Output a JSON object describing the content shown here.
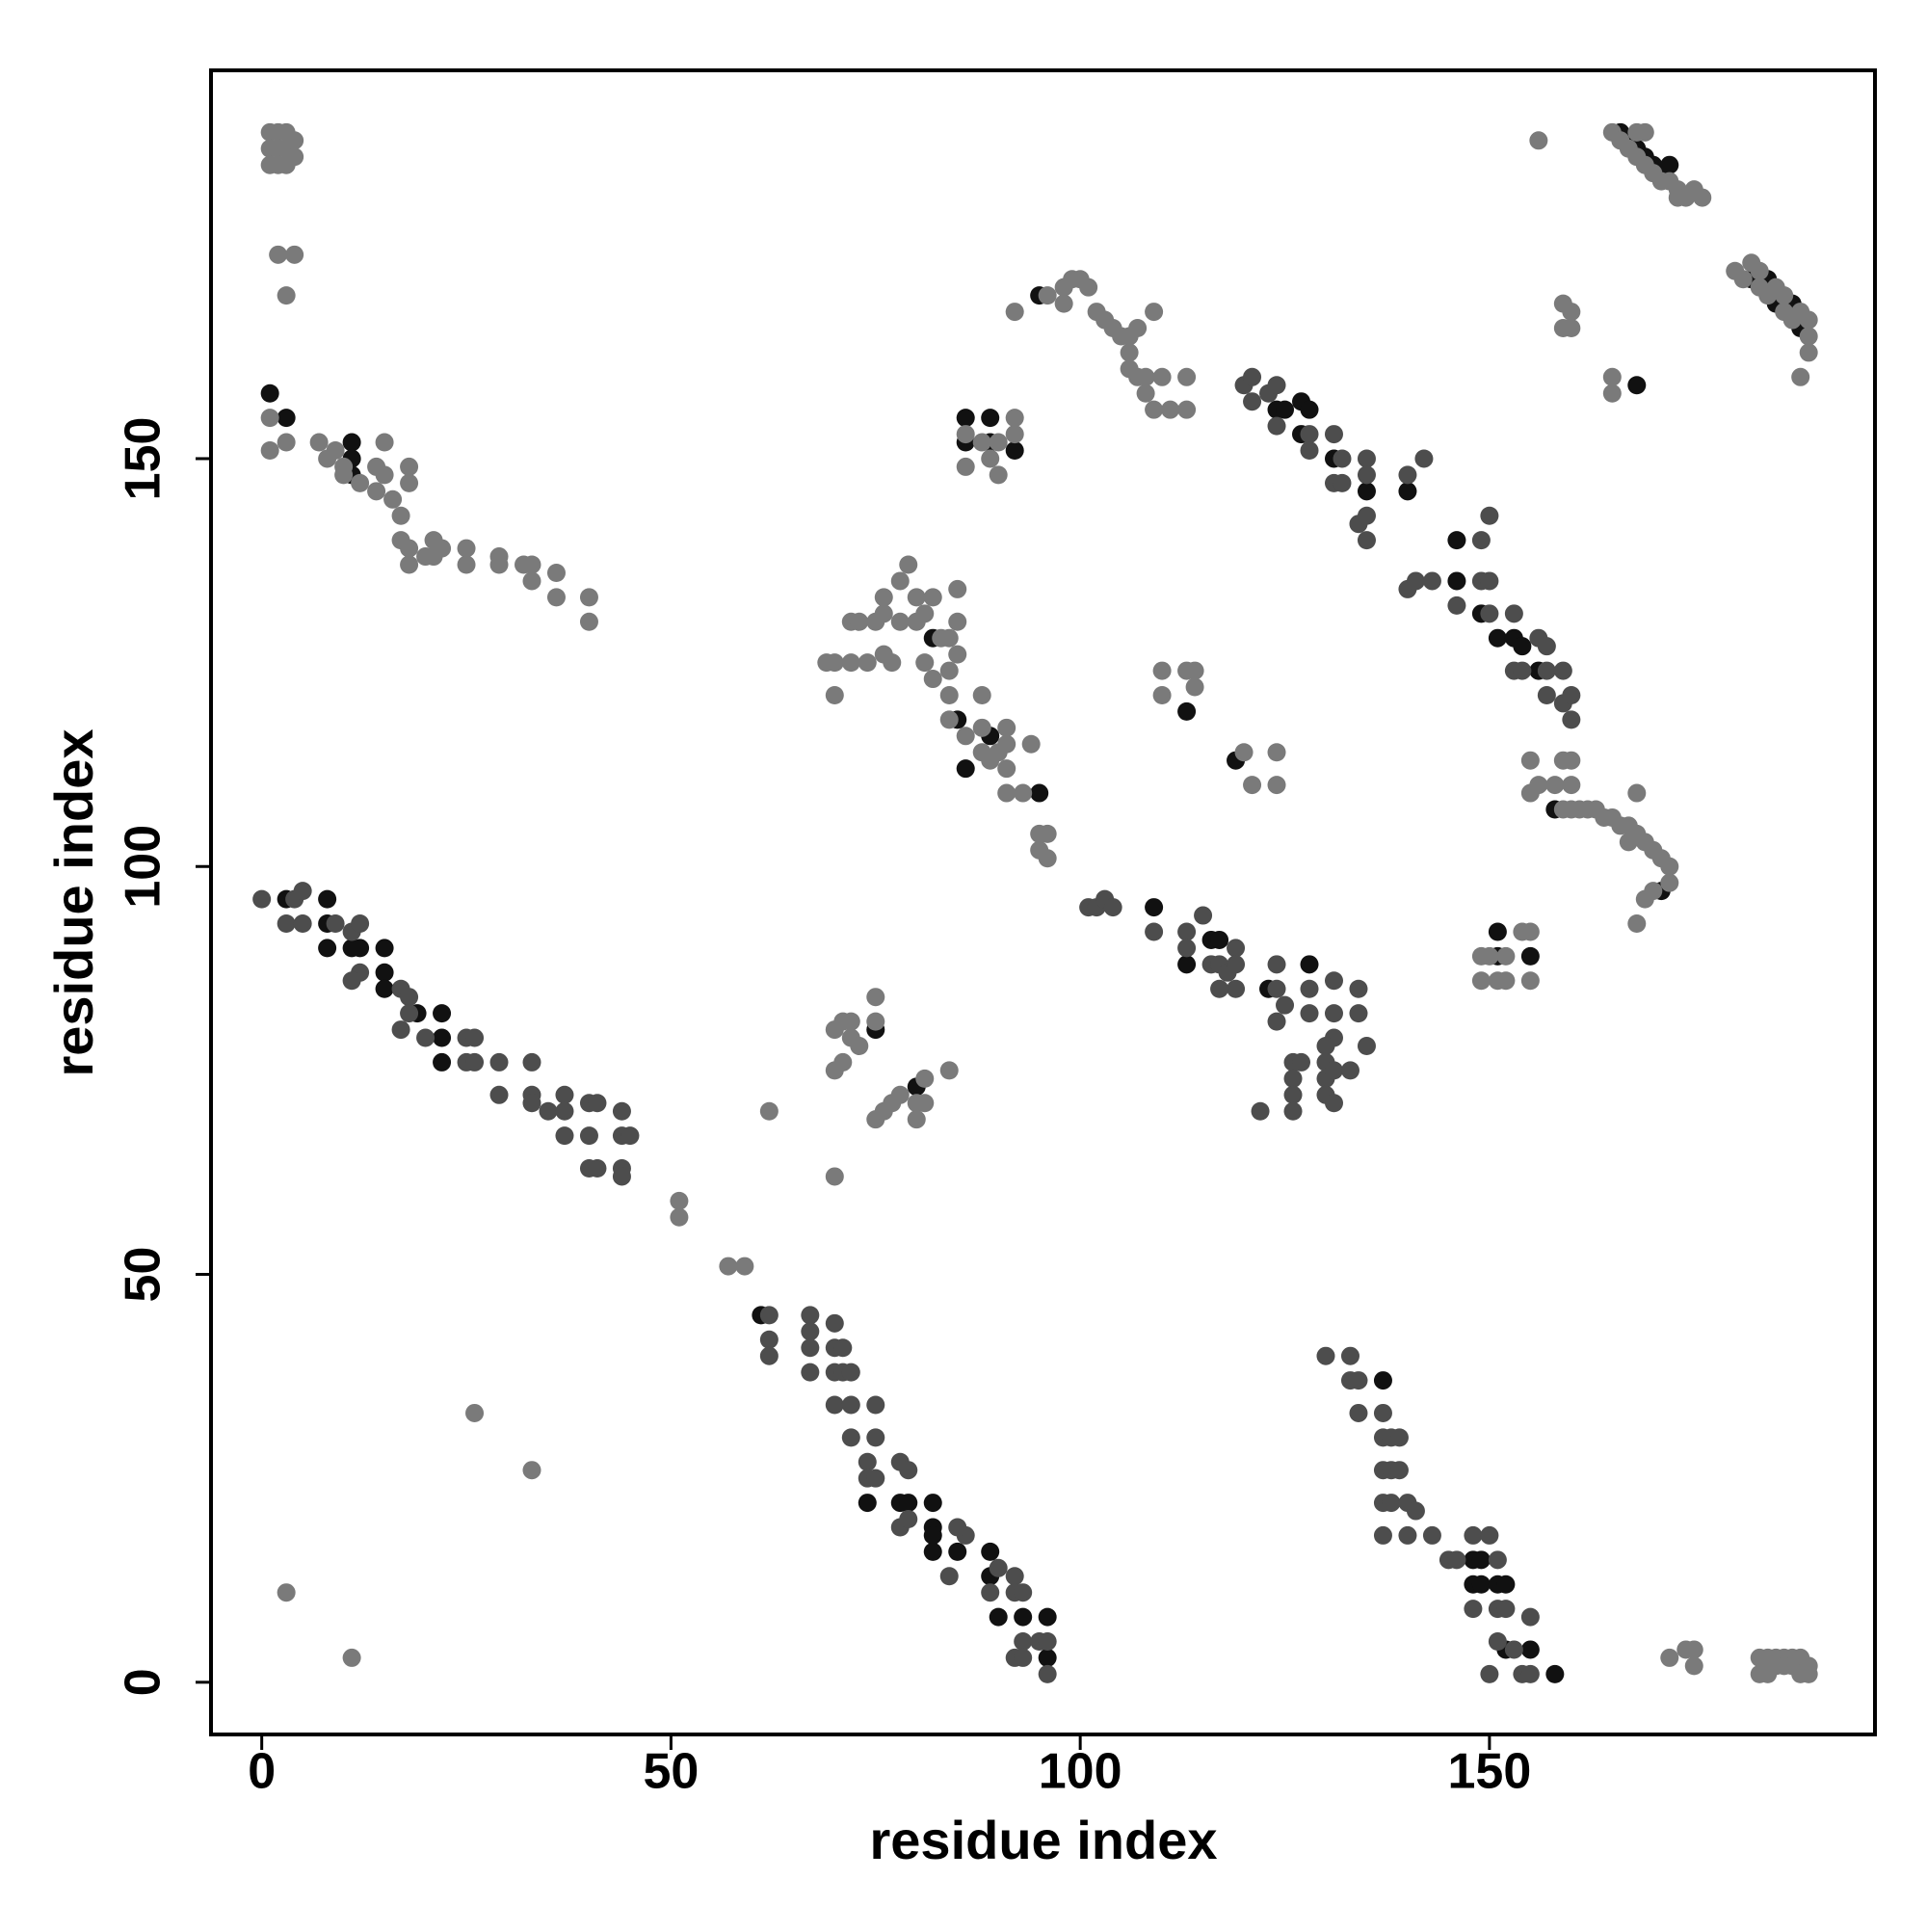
{
  "chart_data": {
    "type": "scatter",
    "xlabel": "residue index",
    "ylabel": "residue index",
    "xlim": [
      -6.2,
      197.1
    ],
    "ylim": [
      -6.4,
      197.6
    ],
    "xticks": [
      0,
      50,
      100,
      150
    ],
    "yticks": [
      0,
      50,
      100,
      150
    ],
    "series": [
      {
        "color": "#111111",
        "x": [
          1,
          3,
          11,
          11,
          11,
          3,
          8,
          8,
          8,
          12,
          11,
          15,
          15,
          15,
          19,
          22,
          22,
          22,
          61,
          74,
          78,
          79,
          82,
          82,
          82,
          82,
          85,
          89,
          89,
          90,
          93,
          96,
          96,
          137,
          148,
          149,
          148,
          149,
          151,
          152,
          152,
          155,
          158,
          75,
          80,
          82,
          85,
          86,
          89,
          95,
          109,
          113,
          116,
          117,
          123,
          128,
          95,
          86,
          86,
          89,
          89,
          92,
          124,
          125,
          127,
          128,
          127,
          131,
          135,
          140,
          146,
          146,
          149,
          151,
          153,
          154,
          156,
          113,
          119,
          151,
          151,
          155,
          158,
          171,
          166,
          167,
          168,
          169,
          170,
          171,
          172,
          168,
          182,
          184,
          185,
          187,
          188
        ],
        "values": [
          158,
          155,
          152,
          150,
          148,
          96,
          96,
          93,
          90,
          90,
          90,
          90,
          87,
          85,
          82,
          82,
          79,
          76,
          45,
          22,
          22,
          22,
          22,
          19,
          18,
          16,
          16,
          16,
          13,
          8,
          8,
          8,
          3,
          37,
          15,
          15,
          12,
          12,
          12,
          12,
          4,
          4,
          1,
          80,
          73,
          128,
          118,
          112,
          116,
          109,
          95,
          88,
          91,
          91,
          85,
          88,
          170,
          155,
          152,
          155,
          152,
          151,
          156,
          156,
          157,
          156,
          153,
          150,
          146,
          146,
          140,
          135,
          131,
          128,
          128,
          127,
          124,
          119,
          113,
          92,
          89,
          89,
          107,
          97,
          190,
          189,
          188,
          187,
          186,
          185,
          186,
          159,
          172,
          172,
          169,
          169,
          166
        ]
      },
      {
        "color": "#4d4d4d",
        "x": [
          0,
          4,
          5,
          3,
          5,
          9,
          11,
          12,
          12,
          11,
          17,
          18,
          18,
          17,
          20,
          25,
          25,
          26,
          26,
          29,
          29,
          33,
          33,
          33,
          35,
          37,
          37,
          37,
          40,
          40,
          41,
          40,
          41,
          44,
          44,
          45,
          44,
          44,
          62,
          62,
          62,
          67,
          67,
          67,
          67,
          70,
          70,
          71,
          70,
          71,
          72,
          70,
          72,
          75,
          72,
          75,
          74,
          74,
          75,
          78,
          79,
          78,
          79,
          86,
          85,
          84,
          90,
          89,
          92,
          92,
          93,
          93,
          95,
          96,
          92,
          93,
          96,
          130,
          133,
          133,
          134,
          134,
          137,
          137,
          138,
          139,
          137,
          138,
          139,
          137,
          138,
          140,
          141,
          137,
          140,
          143,
          145,
          146,
          148,
          150,
          151,
          148,
          151,
          152,
          155,
          151,
          153,
          150,
          154,
          155,
          101,
          102,
          103,
          104,
          109,
          113,
          113,
          115,
          116,
          117,
          119,
          118,
          119,
          117,
          119,
          124,
          124,
          124,
          125,
          126,
          126,
          126,
          126,
          127,
          128,
          128,
          131,
          131,
          130,
          130,
          130,
          130,
          131,
          131,
          133,
          134,
          134,
          135,
          122,
          131,
          120,
          121,
          121,
          123,
          124,
          124,
          128,
          128,
          131,
          132,
          131,
          132,
          135,
          135,
          134,
          135,
          135,
          140,
          142,
          140,
          141,
          143,
          146,
          149,
          149,
          150,
          150,
          150,
          153,
          153,
          154,
          156,
          157,
          157,
          157,
          159,
          159,
          160,
          160
        ],
        "values": [
          96,
          96,
          97,
          93,
          93,
          93,
          92,
          93,
          87,
          86,
          85,
          84,
          82,
          80,
          79,
          79,
          76,
          76,
          79,
          76,
          72,
          76,
          72,
          71,
          70,
          72,
          70,
          67,
          71,
          67,
          71,
          63,
          63,
          70,
          67,
          67,
          63,
          62,
          45,
          42,
          40,
          45,
          43,
          41,
          38,
          44,
          41,
          41,
          38,
          38,
          38,
          34,
          34,
          34,
          30,
          30,
          27,
          25,
          25,
          27,
          26,
          19,
          20,
          18,
          19,
          13,
          14,
          11,
          13,
          11,
          11,
          5,
          5,
          5,
          3,
          3,
          1,
          40,
          40,
          37,
          37,
          33,
          33,
          30,
          30,
          30,
          26,
          26,
          26,
          22,
          22,
          22,
          21,
          18,
          18,
          18,
          15,
          15,
          18,
          18,
          15,
          9,
          9,
          9,
          8,
          5,
          4,
          1,
          1,
          1,
          95,
          95,
          96,
          95,
          92,
          92,
          90,
          94,
          88,
          88,
          90,
          87,
          85,
          85,
          88,
          88,
          85,
          81,
          83,
          76,
          74,
          72,
          70,
          76,
          85,
          82,
          82,
          79,
          78,
          76,
          74,
          72,
          71,
          75,
          75,
          82,
          85,
          78,
          70,
          86,
          159,
          160,
          157,
          158,
          159,
          154,
          153,
          151,
          153,
          150,
          147,
          147,
          150,
          148,
          142,
          143,
          140,
          148,
          150,
          134,
          135,
          135,
          132,
          140,
          135,
          135,
          131,
          143,
          131,
          124,
          124,
          128,
          127,
          124,
          121,
          124,
          120,
          121,
          118
        ]
      },
      {
        "color": "#7a7a7a",
        "x": [
          1,
          2,
          3,
          1,
          2,
          3,
          4,
          1,
          2,
          3,
          4,
          2,
          4,
          3,
          1,
          1,
          3,
          7,
          8,
          9,
          10,
          10,
          12,
          14,
          14,
          15,
          15,
          16,
          18,
          18,
          17,
          17,
          18,
          18,
          21,
          21,
          22,
          25,
          25,
          29,
          29,
          32,
          33,
          33,
          36,
          36,
          40,
          40,
          20,
          51,
          51,
          57,
          59,
          62,
          70,
          26,
          33,
          3,
          11,
          172,
          174,
          175,
          175,
          183,
          184,
          185,
          186,
          187,
          188,
          183,
          184,
          185,
          186,
          187,
          188,
          189,
          189,
          70,
          71,
          72,
          73,
          70,
          71,
          72,
          75,
          75,
          75,
          76,
          77,
          78,
          80,
          80,
          81,
          81,
          84,
          69,
          70,
          70,
          72,
          72,
          73,
          74,
          75,
          76,
          76,
          76,
          77,
          78,
          78,
          79,
          80,
          80,
          81,
          82,
          81,
          82,
          83,
          84,
          85,
          85,
          85,
          84,
          84,
          84,
          86,
          88,
          88,
          88,
          89,
          90,
          91,
          91,
          91,
          94,
          91,
          93,
          95,
          96,
          95,
          96,
          92,
          96,
          98,
          98,
          99,
          100,
          101,
          102,
          103,
          104,
          105,
          106,
          106,
          107,
          106,
          107,
          109,
          108,
          108,
          110,
          109,
          111,
          113,
          113,
          86,
          86,
          89,
          88,
          90,
          90,
          92,
          92,
          110,
          110,
          113,
          114,
          114,
          120,
          121,
          124,
          124,
          149,
          150,
          151,
          152,
          152,
          149,
          154,
          155,
          155,
          155,
          155,
          156,
          158,
          159,
          159,
          160,
          160,
          160,
          161,
          162,
          163,
          164,
          165,
          166,
          167,
          167,
          168,
          168,
          169,
          170,
          171,
          172,
          172,
          170,
          169,
          168,
          165,
          166,
          167,
          168,
          168,
          169,
          169,
          170,
          171,
          172,
          173,
          173,
          174,
          175,
          176,
          156,
          159,
          160,
          159,
          160,
          165,
          165,
          180,
          181,
          182,
          183,
          183,
          184,
          185,
          186,
          186,
          187,
          188,
          189,
          189,
          189,
          188
        ],
        "values": [
          190,
          190,
          190,
          188,
          188,
          188,
          189,
          186,
          186,
          186,
          187,
          175,
          175,
          170,
          155,
          151,
          152,
          152,
          150,
          151,
          149,
          148,
          147,
          149,
          146,
          148,
          152,
          145,
          147,
          149,
          143,
          140,
          139,
          137,
          140,
          138,
          139,
          137,
          139,
          137,
          138,
          137,
          137,
          135,
          136,
          133,
          133,
          130,
          138,
          59,
          57,
          51,
          51,
          70,
          62,
          33,
          26,
          11,
          3,
          3,
          4,
          4,
          2,
          3,
          3,
          3,
          3,
          3,
          3,
          1,
          1,
          2,
          2,
          2,
          1,
          1,
          2,
          75,
          76,
          79,
          78,
          80,
          81,
          81,
          81,
          84,
          69,
          70,
          71,
          72,
          71,
          69,
          71,
          74,
          75,
          125,
          125,
          121,
          125,
          130,
          130,
          125,
          130,
          133,
          131,
          126,
          125,
          130,
          135,
          137,
          133,
          130,
          131,
          133,
          125,
          123,
          128,
          128,
          126,
          134,
          130,
          124,
          121,
          118,
          116,
          114,
          117,
          121,
          113,
          114,
          117,
          115,
          112,
          115,
          109,
          109,
          104,
          104,
          102,
          101,
          168,
          170,
          169,
          171,
          172,
          172,
          171,
          168,
          167,
          166,
          165,
          163,
          161,
          160,
          165,
          166,
          168,
          158,
          160,
          160,
          156,
          156,
          160,
          156,
          153,
          149,
          150,
          152,
          152,
          148,
          155,
          153,
          124,
          121,
          124,
          122,
          124,
          114,
          110,
          114,
          110,
          89,
          89,
          86,
          86,
          89,
          86,
          92,
          92,
          86,
          113,
          109,
          110,
          110,
          113,
          107,
          107,
          110,
          113,
          107,
          107,
          107,
          106,
          106,
          105,
          105,
          103,
          104,
          109,
          103,
          102,
          101,
          100,
          98,
          97,
          96,
          93,
          190,
          189,
          188,
          190,
          187,
          190,
          186,
          185,
          184,
          184,
          183,
          182,
          182,
          183,
          182,
          189,
          169,
          168,
          166,
          166,
          160,
          158,
          173,
          172,
          174,
          173,
          171,
          170,
          171,
          170,
          168,
          167,
          168,
          167,
          165,
          163,
          160
        ]
      }
    ]
  }
}
